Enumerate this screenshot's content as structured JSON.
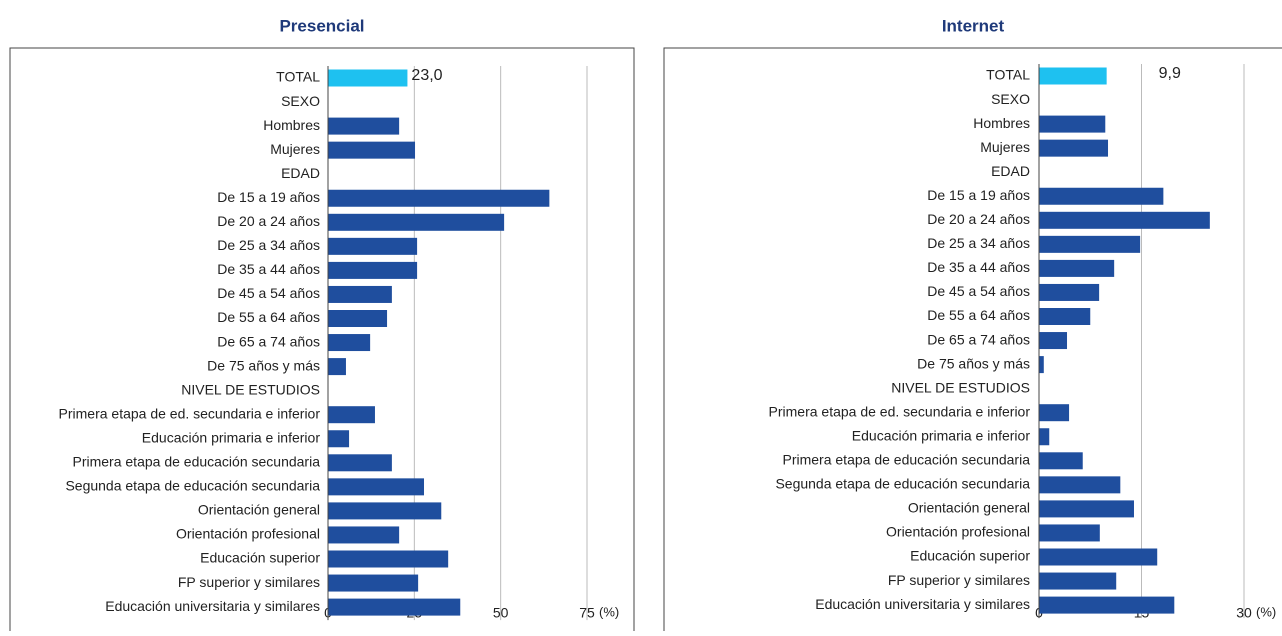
{
  "chart_data": [
    {
      "type": "barh",
      "title": "Presencial",
      "x_unit": "(%)",
      "categories": [
        "TOTAL",
        "SEXO",
        "Hombres",
        "Mujeres",
        "EDAD",
        "De 15 a 19 años",
        "De 20 a 24 años",
        "De 25 a 34 años",
        "De 35 a 44 años",
        "De 45 a 54 años",
        "De 55 a 64 años",
        "De 65 a 74 años",
        "De 75 años y más",
        "NIVEL DE ESTUDIOS",
        "Primera etapa de ed. secundaria e inferior",
        "Educación primaria e inferior",
        "Primera etapa de educación secundaria",
        "Segunda etapa de educación secundaria",
        "Orientación general",
        "Orientación profesional",
        "Educación superior",
        "FP superior y similares",
        "Educación universitaria y similares"
      ],
      "values": [
        23.0,
        null,
        20.6,
        25.2,
        null,
        64.1,
        51.0,
        25.8,
        25.8,
        18.5,
        17.1,
        12.2,
        5.2,
        null,
        13.6,
        6.1,
        18.5,
        27.8,
        32.8,
        20.6,
        34.8,
        26.1,
        38.3
      ],
      "value_labels": [
        "23,0",
        null,
        null,
        null,
        null,
        null,
        null,
        null,
        null,
        null,
        null,
        null,
        null,
        null,
        null,
        null,
        null,
        null,
        null,
        null,
        null,
        null,
        null
      ],
      "colors": [
        "#1ec1f0",
        "#1f4e9e",
        "#1f4e9e",
        "#1f4e9e",
        "#1f4e9e",
        "#1f4e9e",
        "#1f4e9e",
        "#1f4e9e",
        "#1f4e9e",
        "#1f4e9e",
        "#1f4e9e",
        "#1f4e9e",
        "#1f4e9e",
        "#1f4e9e",
        "#1f4e9e",
        "#1f4e9e",
        "#1f4e9e",
        "#1f4e9e",
        "#1f4e9e",
        "#1f4e9e",
        "#1f4e9e",
        "#1f4e9e",
        "#1f4e9e"
      ],
      "xlim": [
        0,
        75
      ],
      "xticks": [
        0,
        25,
        50,
        75
      ],
      "grid": true
    },
    {
      "type": "barh",
      "title": "Internet",
      "x_unit": "(%)",
      "categories": [
        "TOTAL",
        "SEXO",
        "Hombres",
        "Mujeres",
        "EDAD",
        "De 15 a 19 años",
        "De 20 a 24 años",
        "De 25 a 34 años",
        "De 35 a 44 años",
        "De 45 a 54 años",
        "De 55 a 64 años",
        "De 65 a 74 años",
        "De 75 años y más",
        "NIVEL DE ESTUDIOS",
        "Primera etapa de ed. secundaria e inferior",
        "Educación primaria e inferior",
        "Primera etapa de educación secundaria",
        "Segunda etapa de educación secundaria",
        "Orientación general",
        "Orientación profesional",
        "Educación superior",
        "FP superior y similares",
        "Educación universitaria y similares"
      ],
      "values": [
        9.9,
        null,
        9.7,
        10.1,
        null,
        18.2,
        25.0,
        14.8,
        11.0,
        8.8,
        7.5,
        4.1,
        0.7,
        null,
        4.4,
        1.5,
        6.4,
        11.9,
        13.9,
        8.9,
        17.3,
        11.3,
        19.8
      ],
      "value_labels": [
        "9,9",
        null,
        null,
        null,
        null,
        null,
        null,
        null,
        null,
        null,
        null,
        null,
        null,
        null,
        null,
        null,
        null,
        null,
        null,
        null,
        null,
        null,
        null
      ],
      "colors": [
        "#1ec1f0",
        "#1f4e9e",
        "#1f4e9e",
        "#1f4e9e",
        "#1f4e9e",
        "#1f4e9e",
        "#1f4e9e",
        "#1f4e9e",
        "#1f4e9e",
        "#1f4e9e",
        "#1f4e9e",
        "#1f4e9e",
        "#1f4e9e",
        "#1f4e9e",
        "#1f4e9e",
        "#1f4e9e",
        "#1f4e9e",
        "#1f4e9e",
        "#1f4e9e",
        "#1f4e9e",
        "#1f4e9e",
        "#1f4e9e",
        "#1f4e9e"
      ],
      "xlim": [
        0,
        30
      ],
      "xticks": [
        0,
        15,
        30
      ],
      "grid": true
    }
  ]
}
